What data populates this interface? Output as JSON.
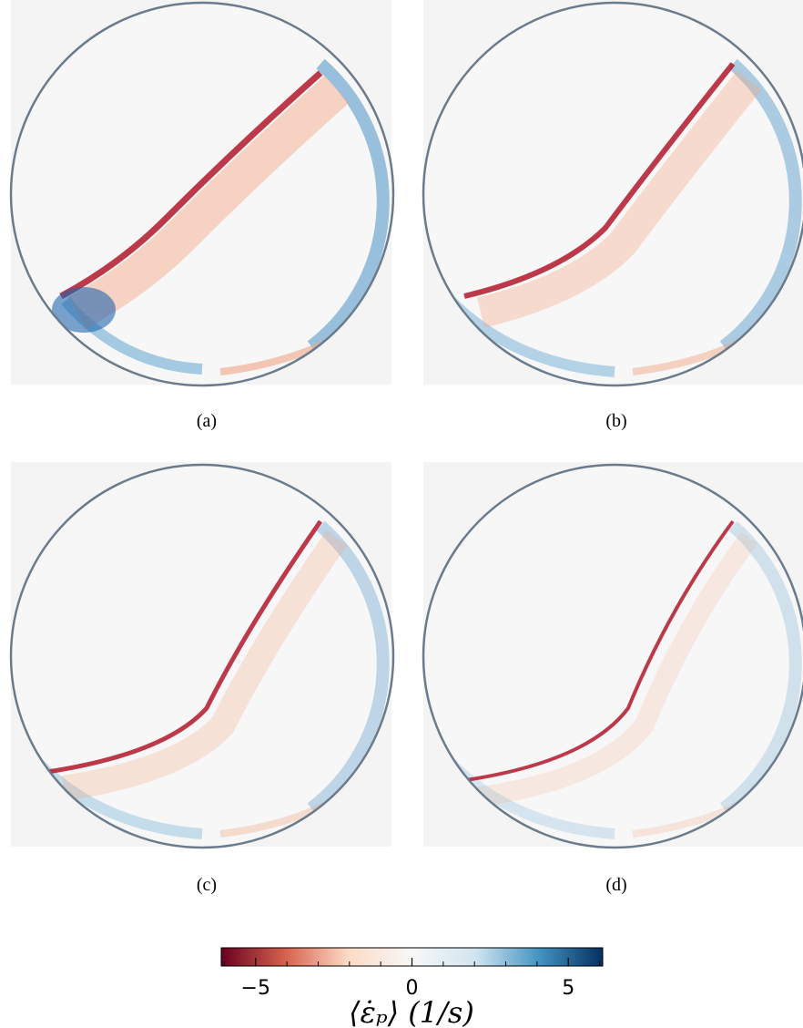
{
  "figure": {
    "panels": [
      {
        "label": "(a)"
      },
      {
        "label": "(b)"
      },
      {
        "label": "(c)"
      },
      {
        "label": "(d)"
      }
    ],
    "colorbar": {
      "xlim": [
        -6.1,
        6.1
      ],
      "xticks": [
        {
          "value": -5,
          "label": "−5"
        },
        0,
        5
      ],
      "minor_xticks": [
        -6,
        -4,
        -3,
        -2,
        -1,
        1,
        2,
        3,
        4,
        6
      ],
      "colormap": [
        "#67001f",
        "#d6604d",
        "#fddbc7",
        "#f7f7f7",
        "#d1e5f0",
        "#4393c3",
        "#053061"
      ],
      "label": "⟨ε̇ₚ⟩ (1/s)"
    }
  }
}
